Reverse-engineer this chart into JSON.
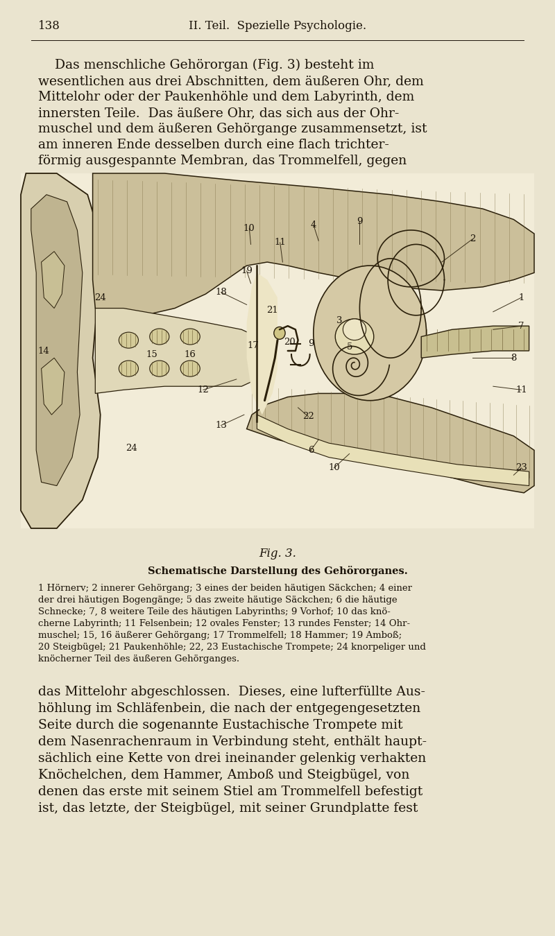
{
  "bg_color": "#EAE4CF",
  "text_color": "#1a1208",
  "page_number": "138",
  "header": "II. Teil.  Spezielle Psychologie.",
  "top_paragraph_lines": [
    "    Das menschliche Gehörorgan (Fig. 3) besteht im",
    "wesentlichen aus drei Abschnitten, dem äußeren Ohr, dem",
    "Mittelohr oder der Paukenhöhle und dem Labyrinth, dem",
    "innersten Teile.  Das äußere Ohr, das sich aus der Ohr-",
    "muschel und dem äußeren Gehörgange zusammensetzt, ist",
    "am inneren Ende desselben durch eine flach trichter-",
    "förmig ausgespannte Membran, das Trommelfell, gegen"
  ],
  "fig_caption": "Fig. 3.",
  "fig_title": "Schematische Darstellung des Gehörorganes.",
  "fig_description_lines": [
    "1 Hörnerv; 2 innerer Gehörgang; 3 eines der beiden häutigen Säckchen; 4 einer",
    "der drei häutigen Bogengänge; 5 das zweite häutige Säckchen; 6 die häutige",
    "Schnecke; 7, 8 weitere Teile des häutigen Labyrinths; 9 Vorhof; 10 das knö-",
    "cherne Labyrinth; 11 Felsenbein; 12 ovales Fenster; 13 rundes Fenster; 14 Ohr-",
    "muschel; 15, 16 äußerer Gehörgang; 17 Trommelfell; 18 Hammer; 19 Amboß;",
    "20 Steigbügel; 21 Paukenhöhle; 22, 23 Eustachische Trompete; 24 knorpeliger und",
    "knöcherner Teil des äußeren Gehörganges."
  ],
  "bottom_paragraph_lines": [
    "das Mittelohr abgeschlossen.  Dieses, eine lufterfüllte Aus-",
    "höhlung im Schläfenbein, die nach der entgegengesetzten",
    "Seite durch die sogenannte Eustachische Trompete mit",
    "dem Nasenrachenraum in Verbindung steht, enthält haupt-",
    "sächlich eine Kette von drei ineinander gelenkig verhakten",
    "Knöchelchen, dem Hammer, Amboß und Steigbügel, von",
    "denen das erste mit seinem Stiel am Trommelfell befestigt",
    "ist, das letzte, der Steigbügel, mit seiner Grundplatte fest"
  ],
  "header_fontsize": 12,
  "body_fontsize": 13.5,
  "small_fontsize": 9.5,
  "caption_fontsize": 12,
  "title_fontsize": 10.5
}
